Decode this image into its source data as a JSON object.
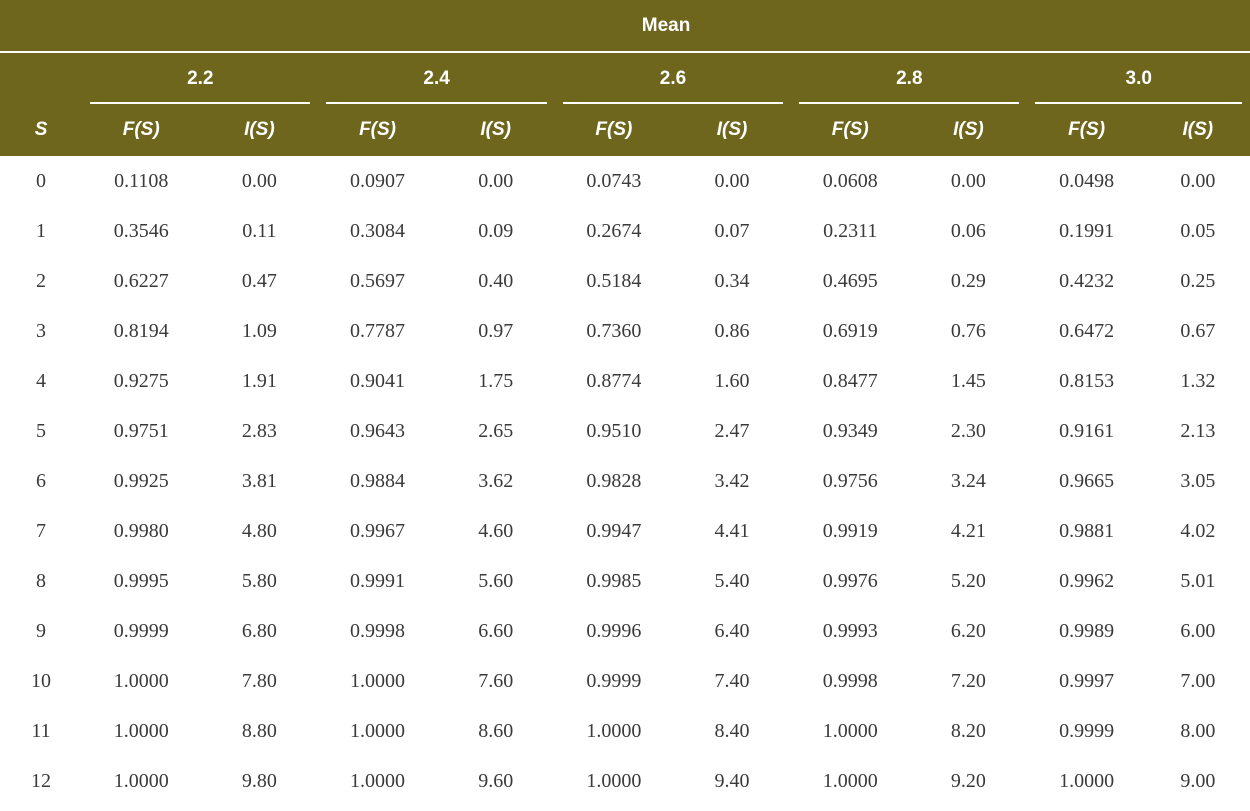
{
  "header": {
    "mean_label": "Mean",
    "s_label": "S",
    "f_label": "F(S)",
    "i_label": "I(S)",
    "means": [
      "2.2",
      "2.4",
      "2.6",
      "2.8",
      "3.0"
    ]
  },
  "rows": [
    {
      "s": "0",
      "v": [
        "0.1108",
        "0.00",
        "0.0907",
        "0.00",
        "0.0743",
        "0.00",
        "0.0608",
        "0.00",
        "0.0498",
        "0.00"
      ]
    },
    {
      "s": "1",
      "v": [
        "0.3546",
        "0.11",
        "0.3084",
        "0.09",
        "0.2674",
        "0.07",
        "0.2311",
        "0.06",
        "0.1991",
        "0.05"
      ]
    },
    {
      "s": "2",
      "v": [
        "0.6227",
        "0.47",
        "0.5697",
        "0.40",
        "0.5184",
        "0.34",
        "0.4695",
        "0.29",
        "0.4232",
        "0.25"
      ]
    },
    {
      "s": "3",
      "v": [
        "0.8194",
        "1.09",
        "0.7787",
        "0.97",
        "0.7360",
        "0.86",
        "0.6919",
        "0.76",
        "0.6472",
        "0.67"
      ]
    },
    {
      "s": "4",
      "v": [
        "0.9275",
        "1.91",
        "0.9041",
        "1.75",
        "0.8774",
        "1.60",
        "0.8477",
        "1.45",
        "0.8153",
        "1.32"
      ]
    },
    {
      "s": "5",
      "v": [
        "0.9751",
        "2.83",
        "0.9643",
        "2.65",
        "0.9510",
        "2.47",
        "0.9349",
        "2.30",
        "0.9161",
        "2.13"
      ]
    },
    {
      "s": "6",
      "v": [
        "0.9925",
        "3.81",
        "0.9884",
        "3.62",
        "0.9828",
        "3.42",
        "0.9756",
        "3.24",
        "0.9665",
        "3.05"
      ]
    },
    {
      "s": "7",
      "v": [
        "0.9980",
        "4.80",
        "0.9967",
        "4.60",
        "0.9947",
        "4.41",
        "0.9919",
        "4.21",
        "0.9881",
        "4.02"
      ]
    },
    {
      "s": "8",
      "v": [
        "0.9995",
        "5.80",
        "0.9991",
        "5.60",
        "0.9985",
        "5.40",
        "0.9976",
        "5.20",
        "0.9962",
        "5.01"
      ]
    },
    {
      "s": "9",
      "v": [
        "0.9999",
        "6.80",
        "0.9998",
        "6.60",
        "0.9996",
        "6.40",
        "0.9993",
        "6.20",
        "0.9989",
        "6.00"
      ]
    },
    {
      "s": "10",
      "v": [
        "1.0000",
        "7.80",
        "1.0000",
        "7.60",
        "0.9999",
        "7.40",
        "0.9998",
        "7.20",
        "0.9997",
        "7.00"
      ]
    },
    {
      "s": "11",
      "v": [
        "1.0000",
        "8.80",
        "1.0000",
        "8.60",
        "1.0000",
        "8.40",
        "1.0000",
        "8.20",
        "0.9999",
        "8.00"
      ]
    },
    {
      "s": "12",
      "v": [
        "1.0000",
        "9.80",
        "1.0000",
        "9.60",
        "1.0000",
        "9.40",
        "1.0000",
        "9.20",
        "1.0000",
        "9.00"
      ]
    }
  ]
}
